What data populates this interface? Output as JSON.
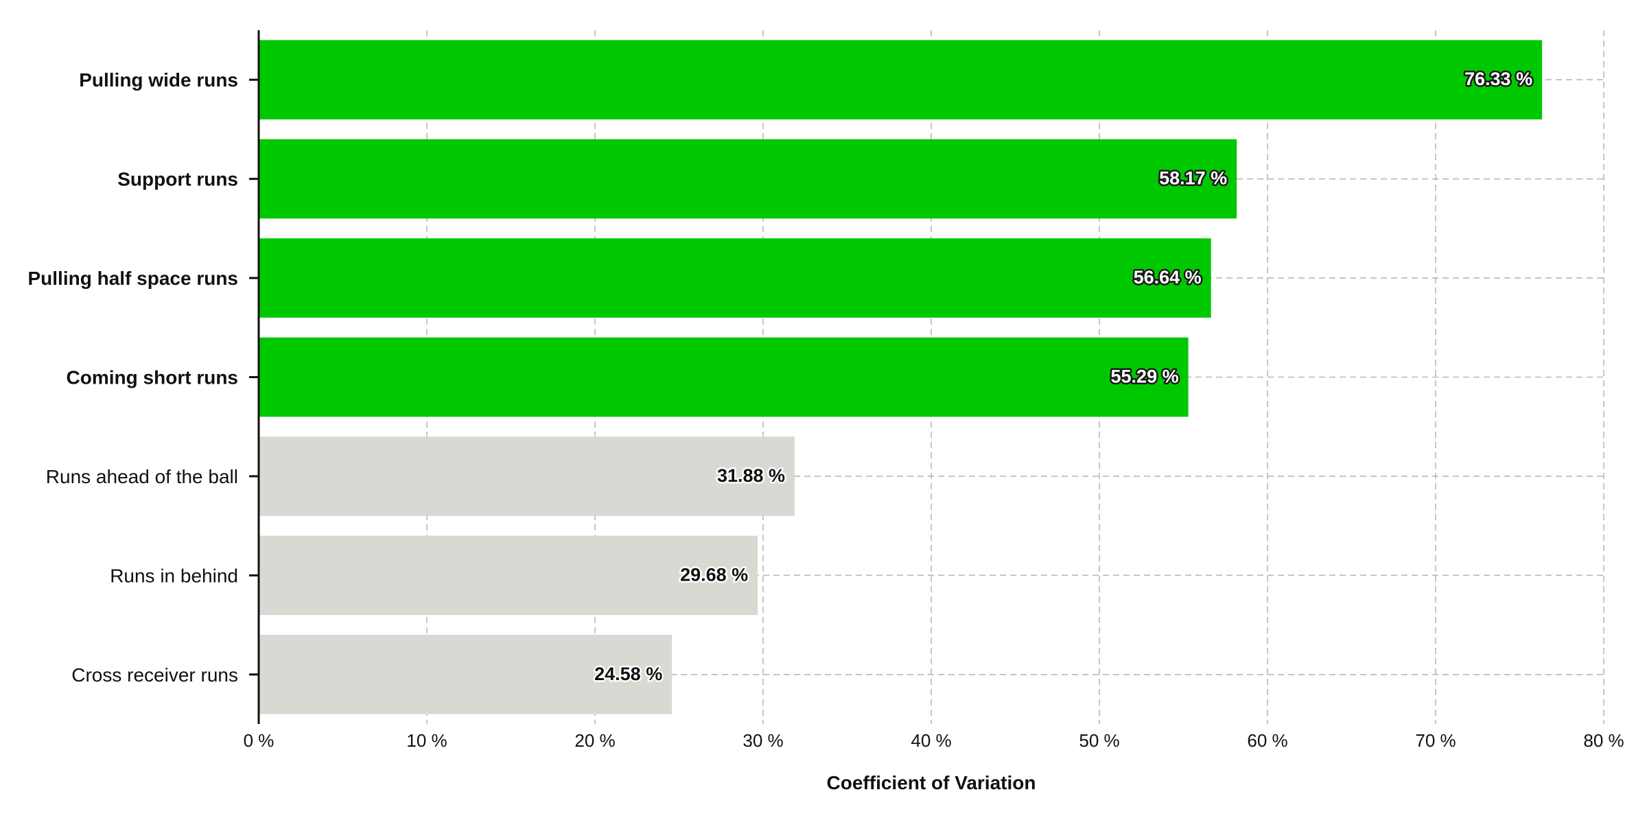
{
  "chart_data": {
    "type": "bar",
    "orientation": "horizontal",
    "title": "",
    "xlabel": "Coefficient of Variation",
    "ylabel": "",
    "xlim": [
      0,
      80
    ],
    "xticks": [
      0,
      10,
      20,
      30,
      40,
      50,
      60,
      70,
      80
    ],
    "tick_suffix": " %",
    "grid": true,
    "categories": [
      "Pulling wide runs",
      "Support runs",
      "Pulling half space runs",
      "Coming short runs",
      "Runs ahead of the ball",
      "Runs in behind",
      "Cross receiver runs"
    ],
    "values": [
      76.33,
      58.17,
      56.64,
      55.29,
      31.88,
      29.68,
      24.58
    ],
    "value_labels": [
      "76.33 %",
      "58.17 %",
      "56.64 %",
      "55.29 %",
      "31.88 %",
      "29.68 %",
      "24.58 %"
    ],
    "highlighted": [
      true,
      true,
      true,
      true,
      false,
      false,
      false
    ],
    "colors": {
      "highlight": "#00c800",
      "muted": "#d9d9d4",
      "highlight_label_fill": "#ffffff",
      "highlight_label_stroke": "#1a1a1a",
      "muted_label_fill": "#111111",
      "muted_label_stroke": "#ffffff"
    }
  }
}
